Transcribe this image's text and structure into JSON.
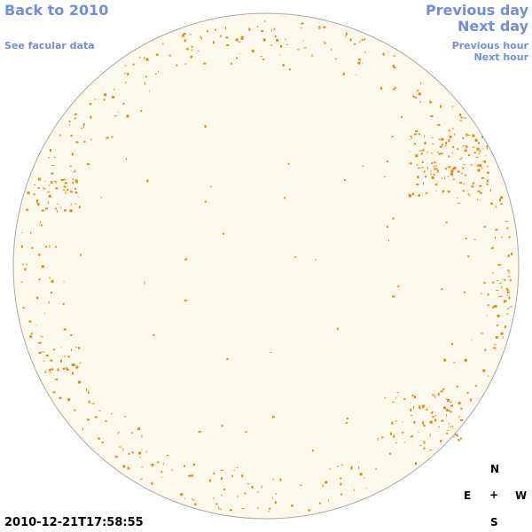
{
  "nav": {
    "back": "Back to 2010",
    "facular": "See facular data",
    "prev_day": "Previous day",
    "next_day": "Next day",
    "prev_hour": "Previous hour",
    "next_hour": "Next hour"
  },
  "compass": {
    "north": "N",
    "east": "E",
    "center": "+",
    "west": "W",
    "south": "S"
  },
  "timestamp": "2010-12-21T17:58:55",
  "colors": {
    "link": "#6f8fdc",
    "disk_fill": "#fdf8ec",
    "disk_stroke": "#a8a8a8",
    "facula": "#e08a10"
  }
}
